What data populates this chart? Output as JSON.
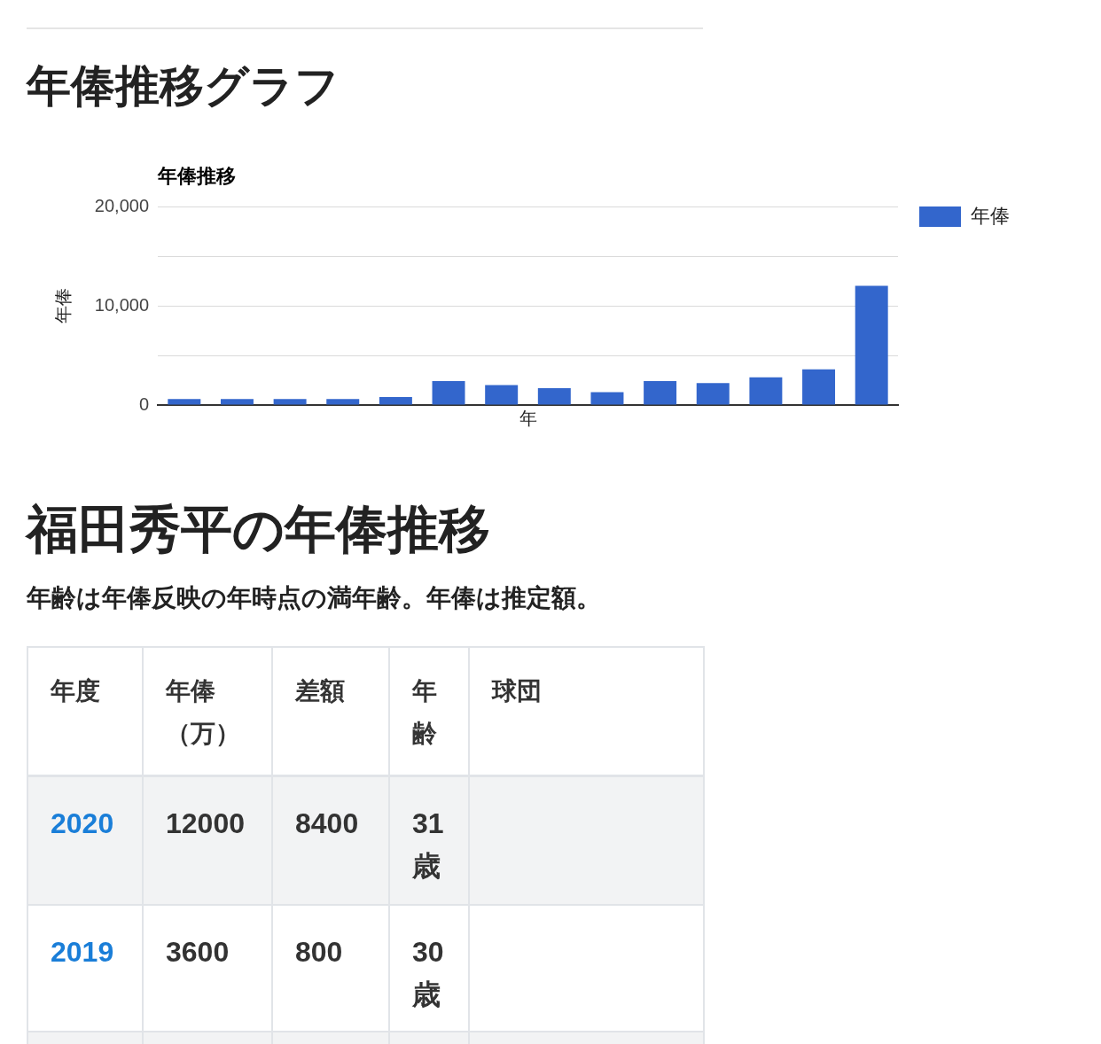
{
  "chart_data": [
    {
      "type": "bar",
      "title": "年俸推移グラフ",
      "subtitle": "年俸推移",
      "xlabel": "年",
      "ylabel": "年俸",
      "categories": [
        null,
        null,
        null,
        null,
        null,
        null,
        null,
        null,
        null,
        null,
        null,
        null,
        null,
        null
      ],
      "series": [
        {
          "name": "年俸",
          "color": "#3366cc",
          "values": [
            600,
            600,
            600,
            600,
            800,
            2400,
            2000,
            1700,
            1300,
            2400,
            2200,
            2800,
            3600,
            12000
          ]
        }
      ],
      "ylim": [
        0,
        20000
      ],
      "yticks": [
        0,
        {
          "value": 5000,
          "label": null
        },
        {
          "value": 10000,
          "label": "10,000"
        },
        {
          "value": 15000,
          "label": null
        },
        {
          "value": 20000,
          "label": "20,000"
        }
      ],
      "grid": "y",
      "legend": "top right",
      "tick_labels": "y"
    },
    {
      "type": "other",
      "title": "福田秀平の年俸推移",
      "subtitle": "年齢は年俸反映の年時点の満年齢。年俸は推定額。",
      "ylabel": "年度",
      "categories": [
        "年俸（万）",
        "差額",
        "年齢",
        "球団"
      ],
      "y_categories": [
        "2020",
        "2019"
      ],
      "cell_labels": [
        [
          "12000",
          "8400",
          "31歳",
          null
        ],
        [
          "3600",
          "800",
          "30歳",
          null
        ]
      ]
    }
  ]
}
